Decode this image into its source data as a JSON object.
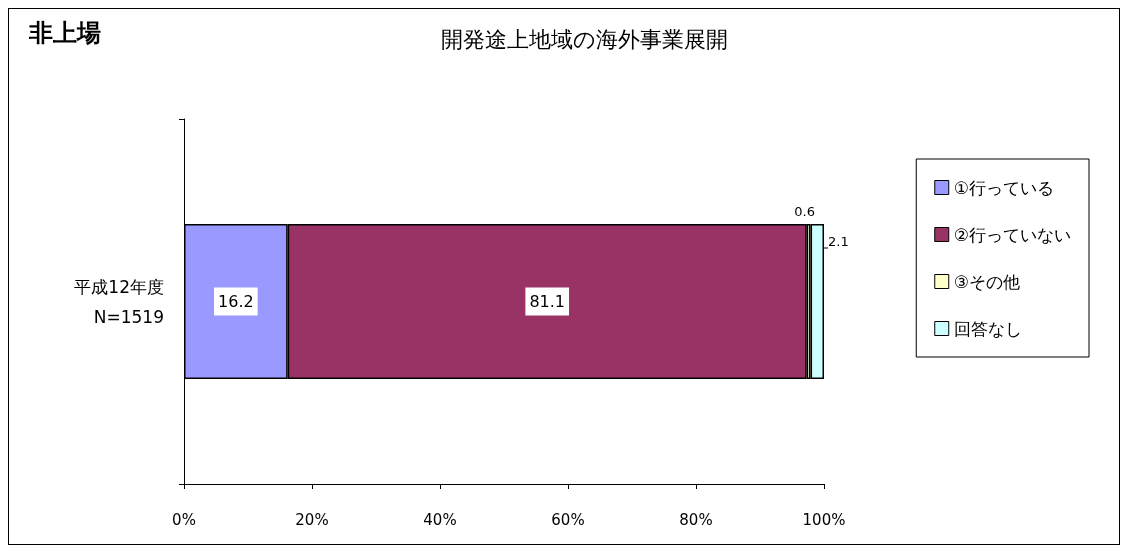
{
  "chart_data": {
    "type": "bar",
    "orientation": "horizontal",
    "stacked": true,
    "title": "開発途上地域の海外事業展開",
    "annotations": [
      "非上場"
    ],
    "categories": [
      "平成12年度\nN=1519"
    ],
    "series": [
      {
        "name": "①行っている",
        "color": "#9999ff",
        "values": [
          16.2
        ]
      },
      {
        "name": "②行っていない",
        "color": "#993366",
        "values": [
          81.1
        ]
      },
      {
        "name": "③その他",
        "color": "#ffffcc",
        "values": [
          0.6
        ]
      },
      {
        "name": "回答なし",
        "color": "#ccffff",
        "values": [
          2.1
        ]
      }
    ],
    "xlim": [
      0,
      100
    ],
    "xticks": [
      {
        "value": 0,
        "label": "0%"
      },
      {
        "value": 20,
        "label": "20%"
      },
      {
        "value": 40,
        "label": "40%"
      },
      {
        "value": 60,
        "label": "60%"
      },
      {
        "value": 80,
        "label": "80%"
      },
      {
        "value": 100,
        "label": "100%"
      }
    ],
    "data_labels": true,
    "legend": "right",
    "grid": false
  }
}
